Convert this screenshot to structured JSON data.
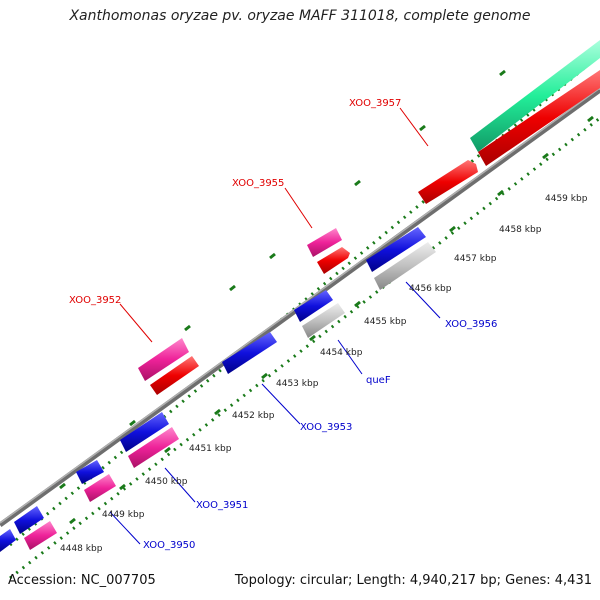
{
  "title": "Xanthomonas oryzae pv. oryzae MAFF 311018, complete genome",
  "footer": {
    "accession": "Accession: NC_007705",
    "summary": "Topology: circular; Length: 4,940,217 bp; Genes: 4,431"
  },
  "colors": {
    "backbone": "#7f7f7f",
    "tick": "#1a7a1a",
    "label_top": "#e00000",
    "label_bottom": "#0000cc",
    "cds_red": "#ee0000",
    "cds_pink": "#ee2299",
    "cds_blue": "#1010dd",
    "cds_gray": "#c0c0c0",
    "cds_green": "#22ee99"
  },
  "tick_labels": [
    "4448 kbp",
    "4449 kbp",
    "4450 kbp",
    "4451 kbp",
    "4452 kbp",
    "4453 kbp",
    "4454 kbp",
    "4455 kbp",
    "4456 kbp",
    "4457 kbp",
    "4458 kbp",
    "4459 kbp"
  ],
  "gene_labels_top": [
    "XOO_3952",
    "XOO_3955",
    "XOO_3957"
  ],
  "gene_labels_bottom": [
    "XOO_3950",
    "XOO_3951",
    "XOO_3953",
    "queF",
    "XOO_3956"
  ]
}
